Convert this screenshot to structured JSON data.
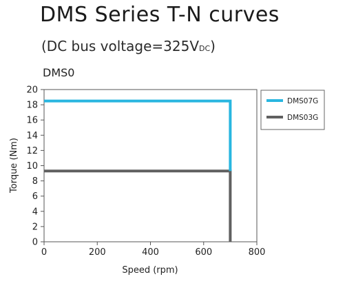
{
  "title": "DMS Series T-N curves",
  "subtitle": {
    "text": "(DC bus voltage=325V",
    "subscript": "DC",
    "close": ")"
  },
  "chart_data": {
    "type": "line",
    "label": "DMS0",
    "xlabel": "Speed (rpm)",
    "ylabel": "Torque (Nm)",
    "xlim": [
      0,
      800
    ],
    "ylim": [
      0,
      20
    ],
    "xticks": [
      0,
      200,
      400,
      600,
      800
    ],
    "yticks": [
      0,
      2,
      4,
      6,
      8,
      10,
      12,
      14,
      16,
      18,
      20
    ],
    "grid": false,
    "legend_position": "right",
    "series": [
      {
        "name": "DMS07G",
        "color": "#29b6e0",
        "x": [
          0,
          700,
          700
        ],
        "y": [
          18.5,
          18.5,
          9.3
        ]
      },
      {
        "name": "DMS03G",
        "color": "#606060",
        "x": [
          0,
          700,
          700
        ],
        "y": [
          9.3,
          9.3,
          0
        ]
      }
    ]
  }
}
